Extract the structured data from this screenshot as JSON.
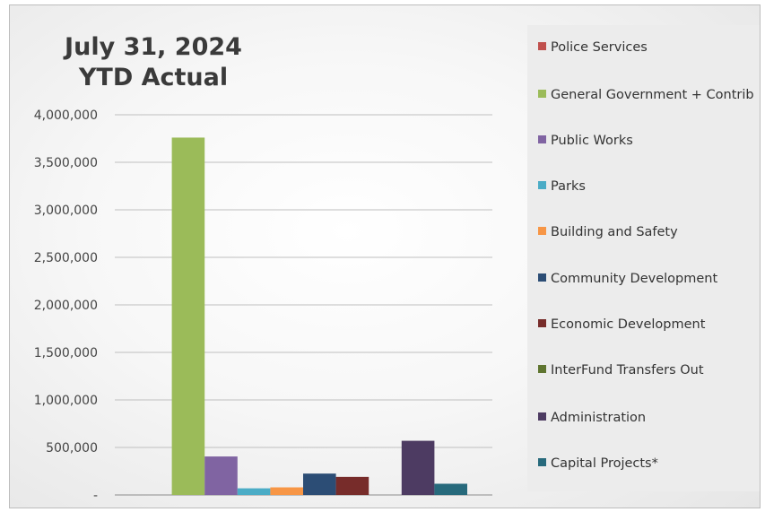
{
  "chart_data": {
    "type": "bar",
    "title_lines": [
      "July 31, 2024",
      "YTD Actual"
    ],
    "xlabel": "",
    "ylabel": "",
    "ylim": [
      0,
      4000000
    ],
    "yticks": [
      0,
      500000,
      1000000,
      1500000,
      2000000,
      2500000,
      3000000,
      3500000,
      4000000
    ],
    "ytick_labels": [
      "-",
      "500,000",
      "1,000,000",
      "1,500,000",
      "2,000,000",
      "2,500,000",
      "3,000,000",
      "3,500,000",
      "4,000,000"
    ],
    "grid": true,
    "legend_position": "right",
    "series": [
      {
        "name": "Police Services",
        "value": 0,
        "color": "#c0504d"
      },
      {
        "name": "General Government + Contrib",
        "value": 3760000,
        "color": "#9bbb59"
      },
      {
        "name": "Public Works",
        "value": 405000,
        "color": "#8064a2"
      },
      {
        "name": "Parks",
        "value": 70000,
        "color": "#4bacc6"
      },
      {
        "name": "Building and Safety",
        "value": 80000,
        "color": "#f79646"
      },
      {
        "name": "Community Development",
        "value": 225000,
        "color": "#2c4d75"
      },
      {
        "name": "Economic Development",
        "value": 190000,
        "color": "#772c2a"
      },
      {
        "name": "InterFund Transfers Out",
        "value": 0,
        "color": "#5f7530"
      },
      {
        "name": "Administration",
        "value": 570000,
        "color": "#4d3b62"
      },
      {
        "name": "Capital Projects*",
        "value": 118000,
        "color": "#276a7c"
      }
    ]
  }
}
